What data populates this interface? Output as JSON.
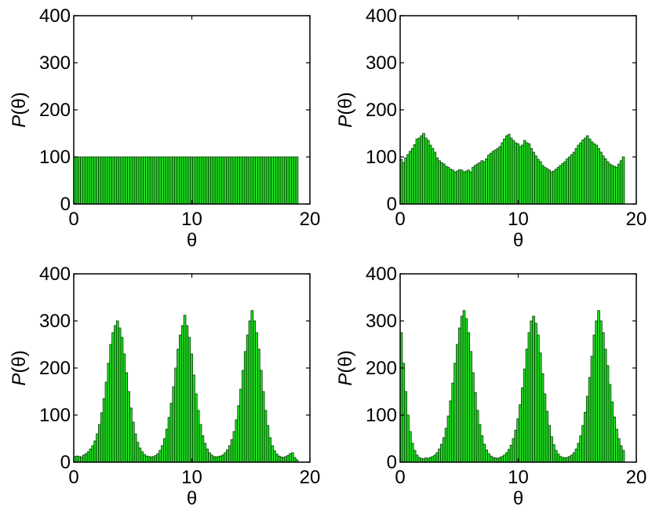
{
  "chart_data": [
    {
      "type": "bar",
      "xlabel": "θ",
      "ylabel_italic": "P",
      "ylabel_rest": "(θ)",
      "xlim": [
        0,
        20
      ],
      "ylim": [
        0,
        400
      ],
      "xticks": [
        "0",
        "10",
        "20"
      ],
      "yticks": [
        "0",
        "100",
        "200",
        "300",
        "400"
      ],
      "bar_color": "#22dd22",
      "bar_edge": "#0a3d0a",
      "bin_width": 0.19,
      "values": [
        100,
        100,
        100,
        100,
        100,
        100,
        100,
        100,
        100,
        100,
        100,
        100,
        100,
        100,
        100,
        100,
        100,
        100,
        100,
        100,
        100,
        100,
        100,
        100,
        100,
        100,
        100,
        100,
        100,
        100,
        100,
        100,
        100,
        100,
        100,
        100,
        100,
        100,
        100,
        100,
        100,
        100,
        100,
        100,
        100,
        100,
        100,
        100,
        100,
        100,
        100,
        100,
        100,
        100,
        100,
        100,
        100,
        100,
        100,
        100,
        100,
        100,
        100,
        100,
        100,
        100,
        100,
        100,
        100,
        100,
        100,
        100,
        100,
        100,
        100,
        100,
        100,
        100,
        100,
        100,
        100,
        100,
        100,
        100,
        100,
        100,
        100,
        100,
        100,
        100,
        100,
        100,
        100,
        100,
        100,
        100,
        100,
        100,
        100,
        100
      ]
    },
    {
      "type": "bar",
      "xlabel": "θ",
      "ylabel_italic": "P",
      "ylabel_rest": "(θ)",
      "xlim": [
        0,
        20
      ],
      "ylim": [
        0,
        400
      ],
      "xticks": [
        "0",
        "10",
        "20"
      ],
      "yticks": [
        "0",
        "100",
        "200",
        "300",
        "400"
      ],
      "bar_color": "#22dd22",
      "bar_edge": "#0a3d0a",
      "bin_width": 0.19,
      "values": [
        95,
        88,
        98,
        105,
        112,
        118,
        126,
        138,
        140,
        145,
        150,
        140,
        135,
        125,
        118,
        110,
        98,
        92,
        88,
        85,
        80,
        78,
        74,
        72,
        68,
        70,
        73,
        72,
        68,
        70,
        72,
        68,
        78,
        82,
        85,
        88,
        92,
        90,
        96,
        104,
        108,
        112,
        115,
        118,
        122,
        130,
        138,
        145,
        148,
        140,
        135,
        130,
        128,
        122,
        125,
        135,
        130,
        128,
        118,
        110,
        102,
        95,
        90,
        82,
        78,
        75,
        72,
        68,
        70,
        74,
        78,
        82,
        86,
        90,
        96,
        100,
        105,
        110,
        118,
        125,
        130,
        136,
        140,
        145,
        138,
        132,
        128,
        125,
        118,
        110,
        102,
        96,
        90,
        85,
        82,
        80,
        78,
        85,
        92,
        100
      ]
    },
    {
      "type": "bar",
      "xlabel": "θ",
      "ylabel_italic": "P",
      "ylabel_rest": "(θ)",
      "xlim": [
        0,
        20
      ],
      "ylim": [
        0,
        400
      ],
      "xticks": [
        "0",
        "10",
        "20"
      ],
      "yticks": [
        "0",
        "100",
        "200",
        "300",
        "400"
      ],
      "bar_color": "#22dd22",
      "bar_edge": "#0a3d0a",
      "bin_width": 0.19,
      "values": [
        12,
        13,
        12,
        11,
        15,
        18,
        22,
        28,
        35,
        45,
        60,
        80,
        105,
        135,
        170,
        210,
        250,
        275,
        290,
        300,
        285,
        265,
        230,
        190,
        150,
        115,
        85,
        60,
        42,
        30,
        22,
        16,
        13,
        12,
        11,
        12,
        14,
        18,
        25,
        35,
        50,
        70,
        95,
        125,
        160,
        200,
        240,
        270,
        290,
        312,
        290,
        265,
        230,
        185,
        145,
        110,
        80,
        56,
        40,
        28,
        20,
        15,
        12,
        11,
        12,
        13,
        15,
        20,
        26,
        35,
        48,
        65,
        90,
        120,
        155,
        195,
        235,
        270,
        300,
        322,
        300,
        275,
        240,
        195,
        150,
        110,
        78,
        52,
        35,
        24,
        17,
        13,
        11,
        10,
        12,
        14,
        18,
        20,
        10,
        5
      ]
    },
    {
      "type": "bar",
      "xlabel": "θ",
      "ylabel_italic": "P",
      "ylabel_rest": "(θ)",
      "xlim": [
        0,
        20
      ],
      "ylim": [
        0,
        400
      ],
      "xticks": [
        "0",
        "10",
        "20"
      ],
      "yticks": [
        "0",
        "100",
        "200",
        "300",
        "400"
      ],
      "bar_color": "#22dd22",
      "bar_edge": "#0a3d0a",
      "bin_width": 0.19,
      "values": [
        275,
        210,
        150,
        100,
        65,
        40,
        25,
        15,
        10,
        8,
        7,
        9,
        8,
        10,
        12,
        15,
        20,
        28,
        38,
        52,
        72,
        98,
        130,
        168,
        210,
        250,
        285,
        310,
        322,
        305,
        275,
        235,
        190,
        148,
        110,
        80,
        56,
        38,
        26,
        18,
        13,
        10,
        9,
        8,
        10,
        12,
        15,
        20,
        27,
        36,
        50,
        68,
        92,
        122,
        158,
        198,
        240,
        275,
        300,
        310,
        295,
        270,
        232,
        188,
        145,
        108,
        78,
        54,
        37,
        25,
        17,
        12,
        10,
        9,
        10,
        12,
        15,
        20,
        28,
        40,
        56,
        78,
        106,
        140,
        180,
        225,
        270,
        300,
        322,
        300,
        275,
        240,
        205,
        165,
        128,
        96,
        70,
        50,
        35,
        25
      ]
    }
  ]
}
